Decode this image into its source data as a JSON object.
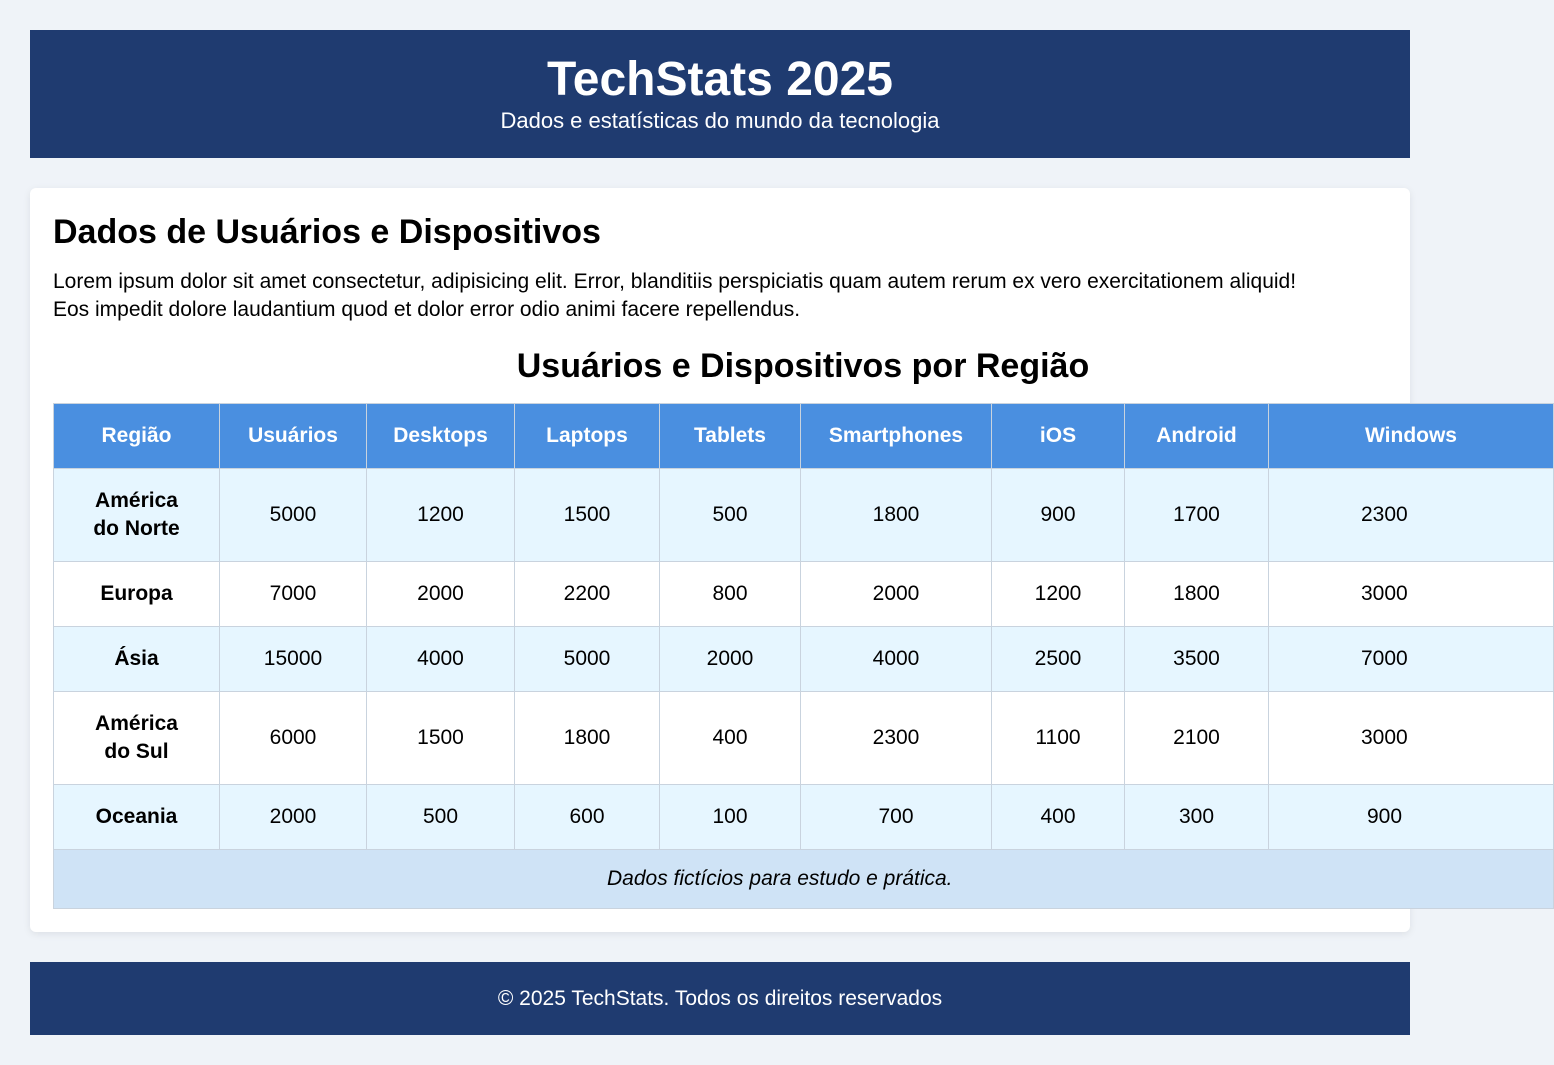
{
  "header": {
    "title": "TechStats 2025",
    "subtitle": "Dados e estatísticas do mundo da tecnologia"
  },
  "section": {
    "title": "Dados de Usuários e Dispositivos",
    "intro": "Lorem ipsum dolor sit amet consectetur, adipisicing elit. Error, blanditiis perspiciatis quam autem rerum ex vero exercitationem aliquid! Eos impedit dolore laudantium quod et dolor error odio animi facere repellendus."
  },
  "table": {
    "caption": "Usuários e Dispositivos por Região",
    "headers": [
      "Região",
      "Usuários",
      "Desktops",
      "Laptops",
      "Tablets",
      "Smartphones",
      "iOS",
      "Android",
      "Windows"
    ],
    "rows": [
      {
        "region_line1": "América",
        "region_line2": "do Norte",
        "values": [
          "5000",
          "1200",
          "1500",
          "500",
          "1800",
          "900",
          "1700",
          "2300"
        ]
      },
      {
        "region_line1": "Europa",
        "region_line2": "",
        "values": [
          "7000",
          "2000",
          "2200",
          "800",
          "2000",
          "1200",
          "1800",
          "3000"
        ]
      },
      {
        "region_line1": "Ásia",
        "region_line2": "",
        "values": [
          "15000",
          "4000",
          "5000",
          "2000",
          "4000",
          "2500",
          "3500",
          "7000"
        ]
      },
      {
        "region_line1": "América",
        "region_line2": "do Sul",
        "values": [
          "6000",
          "1500",
          "1800",
          "400",
          "2300",
          "1100",
          "2100",
          "3000"
        ]
      },
      {
        "region_line1": "Oceania",
        "region_line2": "",
        "values": [
          "2000",
          "500",
          "600",
          "100",
          "700",
          "400",
          "300",
          "900"
        ]
      }
    ],
    "footnote": "Dados fictícios para estudo e prática."
  },
  "footer": {
    "text": "© 2025 TechStats. Todos os direitos reservados"
  }
}
